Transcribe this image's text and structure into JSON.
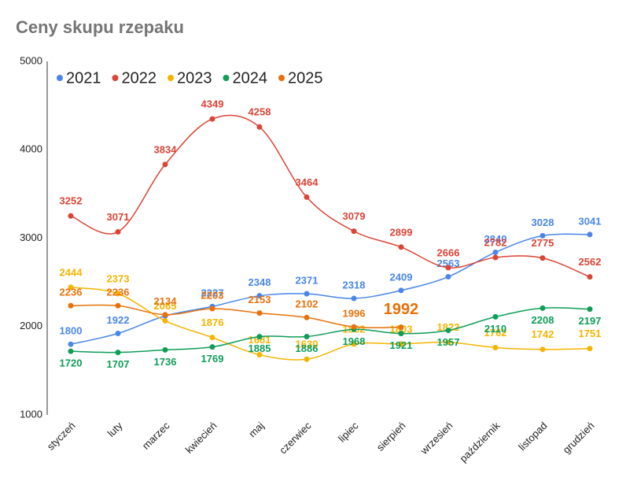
{
  "chart_data": {
    "type": "line",
    "title": "Ceny skupu rzepaku",
    "categories": [
      "styczeń",
      "luty",
      "marzec",
      "kwiecień",
      "maj",
      "czerwiec",
      "lipiec",
      "sierpień",
      "wrzesień",
      "październik",
      "listopad",
      "grudzień"
    ],
    "series": [
      {
        "name": "2021",
        "color": "#4a86e8",
        "values": [
          1800,
          1922,
          2120,
          2227,
          2348,
          2371,
          2318,
          2409,
          2563,
          2840,
          3028,
          3041
        ],
        "value_labels": [
          "1800",
          "1922",
          null,
          "2227",
          "2348",
          "2371",
          "2318",
          "2409",
          "2563",
          "2840",
          "3028",
          "3041"
        ]
      },
      {
        "name": "2022",
        "color": "#db4437",
        "values": [
          3252,
          3071,
          3834,
          4349,
          4258,
          3464,
          3079,
          2899,
          2666,
          2782,
          2775,
          2562
        ]
      },
      {
        "name": "2023",
        "color": "#f4b400",
        "values": [
          2444,
          2373,
          2065,
          1876,
          1681,
          1630,
          1802,
          1803,
          1822,
          1762,
          1742,
          1751
        ]
      },
      {
        "name": "2024",
        "color": "#0f9d58",
        "values": [
          1720,
          1707,
          1736,
          1769,
          1885,
          1886,
          1968,
          1921,
          1957,
          2110,
          2208,
          2197
        ]
      },
      {
        "name": "2025",
        "color": "#e8710a",
        "values": [
          2236,
          2236,
          2134,
          2203,
          2153,
          2102,
          1996,
          1992,
          null,
          null,
          null,
          null
        ]
      }
    ],
    "ylim": [
      1000,
      5000
    ],
    "yticks": [
      1000,
      2000,
      3000,
      4000,
      5000
    ],
    "grid": false,
    "legend": "top-left"
  }
}
